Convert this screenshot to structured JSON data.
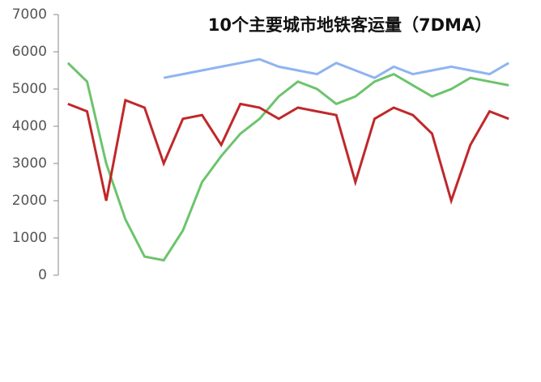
{
  "chart_data": {
    "type": "line",
    "title": "10个主要城市地铁客运量（7DMA）",
    "categories": [
      null,
      null,
      null,
      null,
      null,
      null,
      null,
      null,
      null,
      null,
      null,
      null,
      null,
      null,
      null,
      null,
      null,
      null,
      null,
      null,
      null,
      null,
      null,
      null
    ],
    "series": [
      {
        "color": "#8fb4ef",
        "values": [
          null,
          null,
          null,
          null,
          null,
          5300,
          5400,
          5500,
          5600,
          5700,
          5800,
          5600,
          5500,
          5400,
          5700,
          5500,
          5300,
          5600,
          5400,
          5500,
          5600,
          5500,
          5400,
          5700
        ]
      },
      {
        "color": "#6cc46c",
        "values": [
          5700,
          5200,
          3000,
          1500,
          500,
          400,
          1200,
          2500,
          3200,
          3800,
          4200,
          4800,
          5200,
          5000,
          4600,
          4800,
          5200,
          5400,
          5100,
          4800,
          5000,
          5300,
          5200,
          5100
        ]
      },
      {
        "color": "#c0282a",
        "values": [
          4600,
          4400,
          2000,
          4700,
          4500,
          3000,
          4200,
          4300,
          3500,
          4600,
          4500,
          4200,
          4500,
          4400,
          4300,
          2500,
          4200,
          4500,
          4300,
          3800,
          2000,
          3500,
          4400,
          4200
        ]
      }
    ],
    "ylim": [
      0,
      7000
    ],
    "yticks": [
      0,
      1000,
      2000,
      3000,
      4000,
      5000,
      6000,
      7000
    ]
  }
}
